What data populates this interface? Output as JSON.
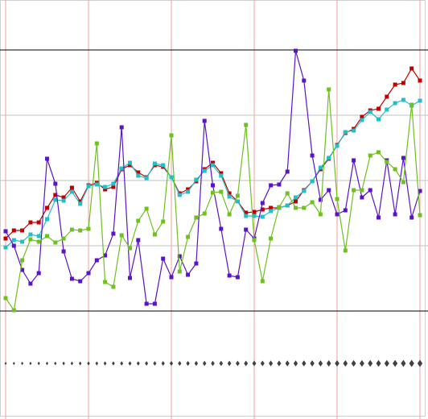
{
  "chart_data": {
    "type": "line",
    "x": [
      0,
      1,
      2,
      3,
      4,
      5,
      6,
      7,
      8,
      9,
      10,
      11,
      12,
      13,
      14,
      15,
      16,
      17,
      18,
      19,
      20,
      21,
      22,
      23,
      24,
      25,
      26,
      27,
      28,
      29,
      30,
      31,
      32,
      33,
      34,
      35,
      36,
      37,
      38,
      39,
      40,
      41,
      42,
      43,
      44,
      45,
      46,
      47,
      48,
      49,
      50
    ],
    "xlim": [
      -0.68,
      50.97
    ],
    "xticks": [
      0,
      10,
      20,
      30,
      40,
      50
    ],
    "ylim": [
      0,
      520
    ],
    "yticks": [
      134,
      215,
      296,
      377,
      458
    ],
    "grid": true,
    "xgrid_color": "#f0a0a0",
    "ygrid_color": "#c0c0c0",
    "series": [
      {
        "color": "#c00000",
        "marker": "square",
        "values": [
          224,
          234,
          234,
          244,
          244,
          262,
          278,
          275,
          287,
          270,
          290,
          293,
          285,
          288,
          310,
          315,
          306,
          300,
          315,
          313,
          300,
          280,
          285,
          295,
          310,
          318,
          305,
          280,
          270,
          256,
          257,
          260,
          262,
          262,
          265,
          270,
          284,
          295,
          310,
          323,
          340,
          355,
          360,
          375,
          383,
          385,
          400,
          415,
          417,
          435,
          420
        ]
      },
      {
        "color": "#20c0c8",
        "marker": "square",
        "values": [
          213,
          222,
          220,
          229,
          227,
          248,
          272,
          271,
          282,
          267,
          289,
          291,
          288,
          292,
          311,
          318,
          302,
          299,
          317,
          315,
          300,
          278,
          282,
          297,
          308,
          315,
          302,
          276,
          270,
          252,
          252,
          251,
          258,
          262,
          265,
          275,
          283,
          295,
          312,
          324,
          339,
          356,
          358,
          371,
          381,
          372,
          384,
          392,
          396,
          389,
          395
        ]
      },
      {
        "color": "#5a14c8",
        "marker": "square",
        "values": [
          233,
          215,
          185,
          168,
          181,
          323,
          292,
          208,
          174,
          171,
          181,
          197,
          203,
          230,
          362,
          175,
          222,
          143,
          143,
          199,
          176,
          202,
          179,
          193,
          370,
          290,
          236,
          178,
          176,
          235,
          224,
          268,
          290,
          291,
          307,
          457,
          420,
          327,
          272,
          284,
          254,
          259,
          321,
          275,
          284,
          250,
          321,
          254,
          324,
          250,
          283
        ]
      },
      {
        "color": "#70c020",
        "marker": "square",
        "values": [
          150,
          135,
          197,
          223,
          220,
          227,
          219,
          224,
          235,
          234,
          236,
          342,
          170,
          164,
          228,
          212,
          246,
          261,
          229,
          245,
          352,
          183,
          226,
          250,
          255,
          281,
          282,
          254,
          277,
          365,
          222,
          171,
          224,
          263,
          280,
          262,
          262,
          269,
          254,
          409,
          273,
          209,
          284,
          284,
          327,
          331,
          319,
          310,
          294,
          390,
          253
        ]
      },
      {
        "color": "#404040",
        "marker": "diamond",
        "line": false,
        "values": [
          69,
          69,
          69,
          69,
          69,
          69,
          69,
          69,
          69,
          69,
          69,
          69,
          69,
          69,
          69,
          69,
          69,
          69,
          69,
          69,
          69,
          69,
          69,
          69,
          69,
          69,
          69,
          69,
          69,
          69,
          69,
          69,
          69,
          69,
          69,
          69,
          69,
          69,
          69,
          69,
          69,
          69,
          69,
          69,
          69,
          69,
          69,
          69,
          69,
          69,
          69
        ]
      }
    ]
  }
}
